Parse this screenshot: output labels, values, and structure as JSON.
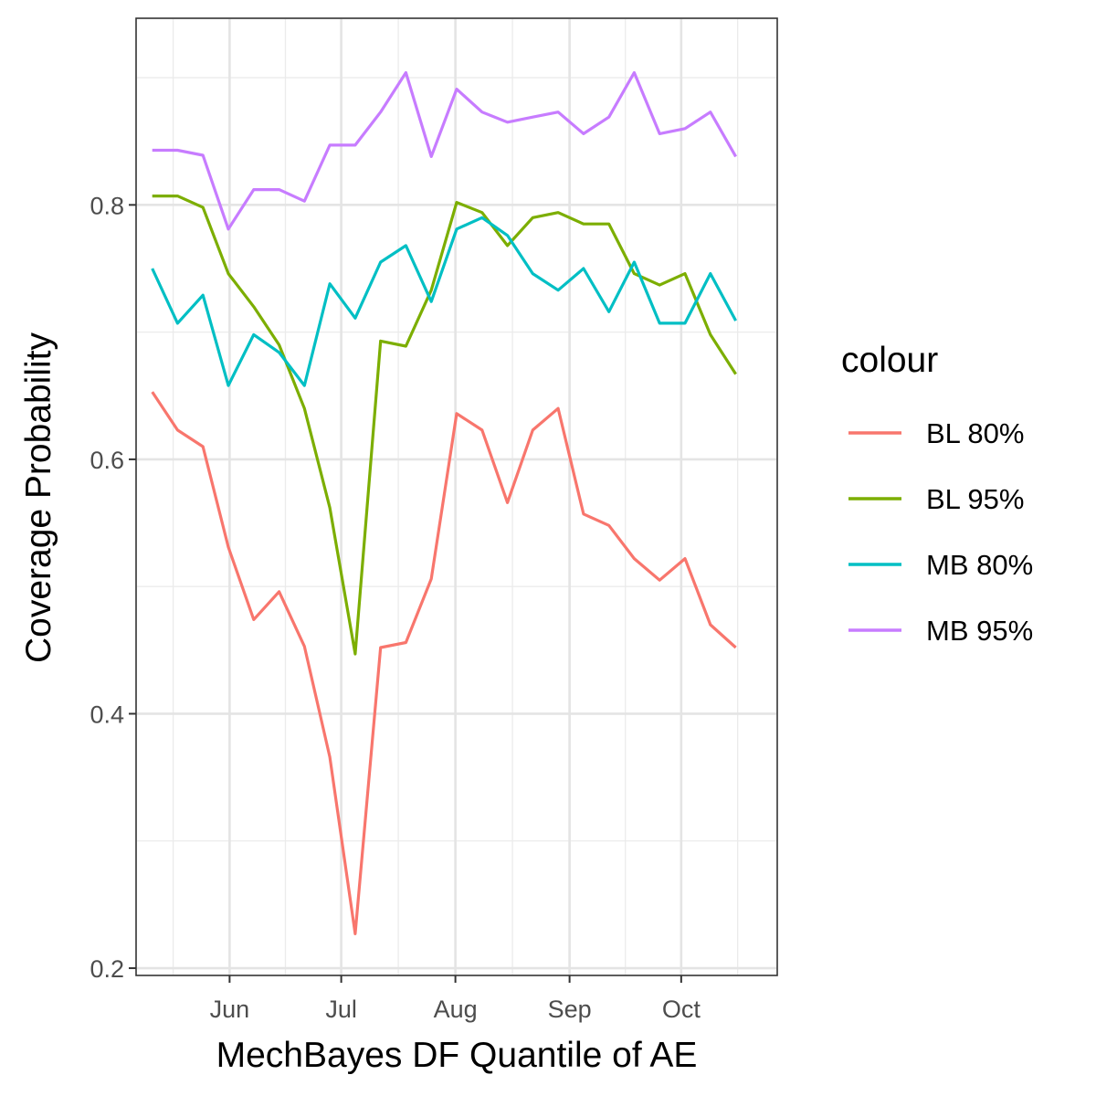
{
  "chart_data": {
    "type": "line",
    "xlabel": "MechBayes DF Quantile of AE",
    "ylabel": "Coverage Probability",
    "x_tick_labels": [
      "Jun",
      "Jul",
      "Aug",
      "Sep",
      "Oct"
    ],
    "y_tick_labels": [
      "0.2",
      "0.4",
      "0.6",
      "0.8"
    ],
    "y_ticks": [
      0.2,
      0.4,
      0.6,
      0.8
    ],
    "ylim": [
      0.195,
      0.946
    ],
    "x_index_range": [
      -0.6,
      24.6
    ],
    "x_tick_index": [
      3.05,
      7.45,
      11.95,
      16.45,
      20.85
    ],
    "x": [
      0,
      1,
      2,
      3,
      4,
      5,
      6,
      7,
      8,
      9,
      10,
      11,
      12,
      13,
      14,
      15,
      16,
      17,
      18,
      19,
      20,
      21,
      22,
      23
    ],
    "legend": {
      "title": "colour",
      "position": "right"
    },
    "grid": true,
    "series": [
      {
        "name": "BL 80%",
        "color": "#F8766D",
        "values": [
          0.653,
          0.623,
          0.61,
          0.531,
          0.474,
          0.496,
          0.453,
          0.366,
          0.227,
          0.452,
          0.456,
          0.506,
          0.636,
          0.623,
          0.566,
          0.623,
          0.64,
          0.557,
          0.548,
          0.522,
          0.505,
          0.522,
          0.47,
          0.452
        ]
      },
      {
        "name": "BL 95%",
        "color": "#7CAE00",
        "values": [
          0.807,
          0.807,
          0.798,
          0.746,
          0.72,
          0.69,
          0.64,
          0.562,
          0.447,
          0.693,
          0.689,
          0.733,
          0.802,
          0.794,
          0.768,
          0.79,
          0.794,
          0.785,
          0.785,
          0.746,
          0.737,
          0.746,
          0.698,
          0.667
        ]
      },
      {
        "name": "MB 80%",
        "color": "#00BFC4",
        "values": [
          0.75,
          0.707,
          0.729,
          0.658,
          0.698,
          0.684,
          0.658,
          0.738,
          0.711,
          0.755,
          0.768,
          0.724,
          0.781,
          0.79,
          0.776,
          0.746,
          0.733,
          0.75,
          0.716,
          0.755,
          0.707,
          0.707,
          0.746,
          0.709
        ]
      },
      {
        "name": "MB 95%",
        "color": "#C77CFF",
        "values": [
          0.843,
          0.843,
          0.839,
          0.781,
          0.812,
          0.812,
          0.803,
          0.847,
          0.847,
          0.873,
          0.904,
          0.838,
          0.891,
          0.873,
          0.865,
          0.869,
          0.873,
          0.856,
          0.869,
          0.904,
          0.856,
          0.86,
          0.873,
          0.838
        ]
      }
    ]
  }
}
